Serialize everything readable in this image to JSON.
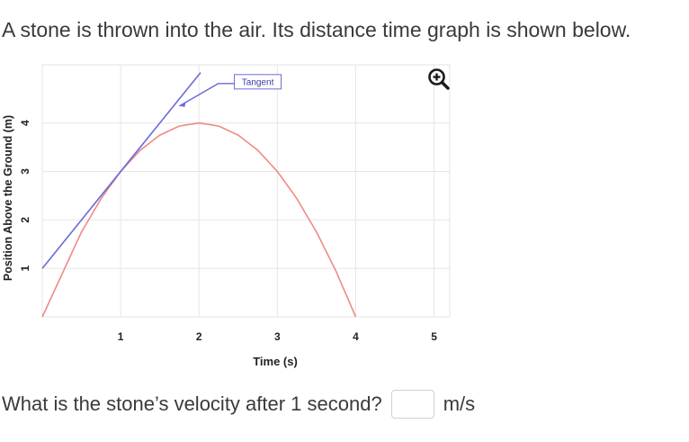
{
  "question": {
    "intro": "A stone is thrown into the air. Its distance time graph is shown below.",
    "prompt": "What is the stone’s velocity after 1 second?",
    "answer_value": "",
    "answer_placeholder": "",
    "unit": "m/s"
  },
  "zoom": {
    "icon": "zoom-in-icon"
  },
  "chart_data": {
    "type": "line",
    "title": "",
    "xlabel": "Time (s)",
    "ylabel": "Position Above the Ground (m)",
    "xlim": [
      0,
      5.2
    ],
    "ylim": [
      0,
      5.2
    ],
    "x_ticks": [
      "1",
      "2",
      "3",
      "4",
      "5"
    ],
    "y_ticks": [
      "1",
      "2",
      "3",
      "4"
    ],
    "grid": true,
    "series": [
      {
        "name": "",
        "kind": "curve",
        "color": "#f08a84",
        "x": [
          0,
          0.25,
          0.5,
          0.75,
          1,
          1.25,
          1.5,
          1.75,
          2,
          2.25,
          2.5,
          2.75,
          3,
          3.25,
          3.5,
          3.75,
          4
        ],
        "y": [
          0,
          0.875,
          1.75,
          2.4375,
          3,
          3.4375,
          3.75,
          3.9375,
          4,
          3.9375,
          3.75,
          3.4375,
          3,
          2.4375,
          1.75,
          0.9375,
          0
        ]
      },
      {
        "name": "",
        "kind": "tangent",
        "color": "#6a6adb",
        "x": [
          0,
          2.02
        ],
        "y": [
          1,
          5.04
        ]
      }
    ],
    "annotations": [
      {
        "text": "Tangent",
        "x": 2.75,
        "y": 4.85,
        "arrow_to": [
          1.75,
          4.35
        ],
        "color": "#6a6adb"
      }
    ]
  }
}
